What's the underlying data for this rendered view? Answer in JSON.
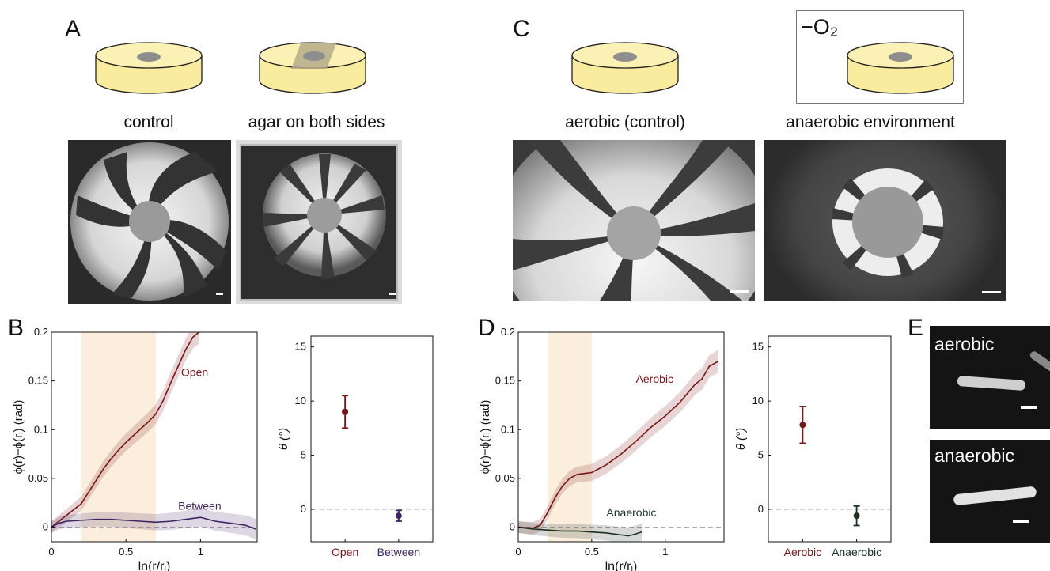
{
  "panels": {
    "A": {
      "label": "A",
      "captions": [
        "control",
        "agar on both sides"
      ]
    },
    "B": {
      "label": "B",
      "series_labels": [
        "Open",
        "Between"
      ]
    },
    "C": {
      "label": "C",
      "captions": [
        "aerobic (control)",
        "anaerobic environment"
      ],
      "box_label": "−O₂"
    },
    "D": {
      "label": "D",
      "series_labels": [
        "Aerobic",
        "Anaerobic"
      ]
    },
    "E": {
      "label": "E",
      "image_labels": [
        "aerobic",
        "anaerobic"
      ]
    }
  },
  "colors": {
    "open": "#7a1515",
    "between": "#3e2464",
    "aerobic": "#7a1515",
    "anaerobic": "#1b2f22",
    "shade": "#fbeedd"
  },
  "chart_data": [
    {
      "id": "B-left",
      "type": "line",
      "xlabel": "ln(r/rᵢ)",
      "ylabel": "ϕ(r)−ϕ(rᵢ) (rad)",
      "xlim": [
        0,
        1.38
      ],
      "ylim": [
        -0.015,
        0.2
      ],
      "xticks": [
        "0",
        "0.5",
        "1"
      ],
      "yticks": [
        "0",
        "0.05",
        "0.1",
        "0.15",
        "0.2"
      ],
      "xtick_values": [
        0,
        0.5,
        1
      ],
      "ytick_values": [
        0,
        0.05,
        0.1,
        0.15,
        0.2
      ],
      "shaded_range": [
        0.2,
        0.7
      ],
      "series": [
        {
          "name": "Open",
          "x": [
            0,
            0.05,
            0.1,
            0.15,
            0.2,
            0.25,
            0.3,
            0.35,
            0.4,
            0.45,
            0.5,
            0.55,
            0.6,
            0.65,
            0.7,
            0.75,
            0.8,
            0.85,
            0.9,
            0.95,
            0.99
          ],
          "y": [
            0,
            0.006,
            0.012,
            0.018,
            0.024,
            0.036,
            0.048,
            0.06,
            0.07,
            0.079,
            0.087,
            0.094,
            0.101,
            0.108,
            0.116,
            0.13,
            0.148,
            0.165,
            0.182,
            0.195,
            0.2
          ]
        },
        {
          "name": "Between",
          "x": [
            0,
            0.05,
            0.1,
            0.2,
            0.3,
            0.4,
            0.5,
            0.6,
            0.7,
            0.8,
            0.9,
            1.0,
            1.1,
            1.2,
            1.3,
            1.37
          ],
          "y": [
            0,
            0.004,
            0.006,
            0.007,
            0.008,
            0.008,
            0.007,
            0.006,
            0.005,
            0.006,
            0.008,
            0.01,
            0.006,
            0.004,
            0.002,
            -0.002
          ]
        }
      ]
    },
    {
      "id": "B-right",
      "type": "scatter",
      "ylabel": "θ (°)",
      "ylim": [
        -3,
        16
      ],
      "yticks": [
        "0",
        "5",
        "10",
        "15"
      ],
      "ytick_values": [
        0,
        5,
        10,
        15
      ],
      "categories": [
        "Open",
        "Between"
      ],
      "values": [
        9.0,
        -0.6
      ],
      "errors": [
        1.5,
        0.5
      ]
    },
    {
      "id": "D-left",
      "type": "line",
      "xlabel": "ln(r/rᵢ)",
      "ylabel": "ϕ(r)−ϕ(rᵢ) (rad)",
      "xlim": [
        0,
        1.4
      ],
      "ylim": [
        -0.015,
        0.2
      ],
      "xticks": [
        "0",
        "0.5",
        "1"
      ],
      "yticks": [
        "0",
        "0.05",
        "0.1",
        "0.15",
        "0.2"
      ],
      "xtick_values": [
        0,
        0.5,
        1
      ],
      "ytick_values": [
        0,
        0.05,
        0.1,
        0.15,
        0.2
      ],
      "shaded_range": [
        0.2,
        0.5
      ],
      "series": [
        {
          "name": "Aerobic",
          "x": [
            0,
            0.1,
            0.15,
            0.2,
            0.25,
            0.3,
            0.35,
            0.4,
            0.45,
            0.5,
            0.6,
            0.7,
            0.8,
            0.9,
            1.0,
            1.1,
            1.2,
            1.25,
            1.3,
            1.36
          ],
          "y": [
            0,
            -0.001,
            0.002,
            0.015,
            0.03,
            0.042,
            0.05,
            0.054,
            0.055,
            0.056,
            0.064,
            0.075,
            0.088,
            0.102,
            0.114,
            0.128,
            0.146,
            0.152,
            0.165,
            0.17
          ]
        },
        {
          "name": "Anaerobic",
          "x": [
            0,
            0.1,
            0.2,
            0.3,
            0.4,
            0.5,
            0.6,
            0.7,
            0.75,
            0.8,
            0.84
          ],
          "y": [
            0,
            -0.002,
            -0.003,
            -0.004,
            -0.004,
            -0.005,
            -0.006,
            -0.008,
            -0.009,
            -0.007,
            -0.005
          ]
        }
      ]
    },
    {
      "id": "D-right",
      "type": "scatter",
      "ylabel": "θ (°)",
      "ylim": [
        -3,
        16
      ],
      "yticks": [
        "0",
        "5",
        "10",
        "15"
      ],
      "ytick_values": [
        0,
        5,
        10,
        15
      ],
      "categories": [
        "Aerobic",
        "Anaerobic"
      ],
      "values": [
        7.8,
        -0.6
      ],
      "errors": [
        1.7,
        0.9
      ]
    }
  ]
}
